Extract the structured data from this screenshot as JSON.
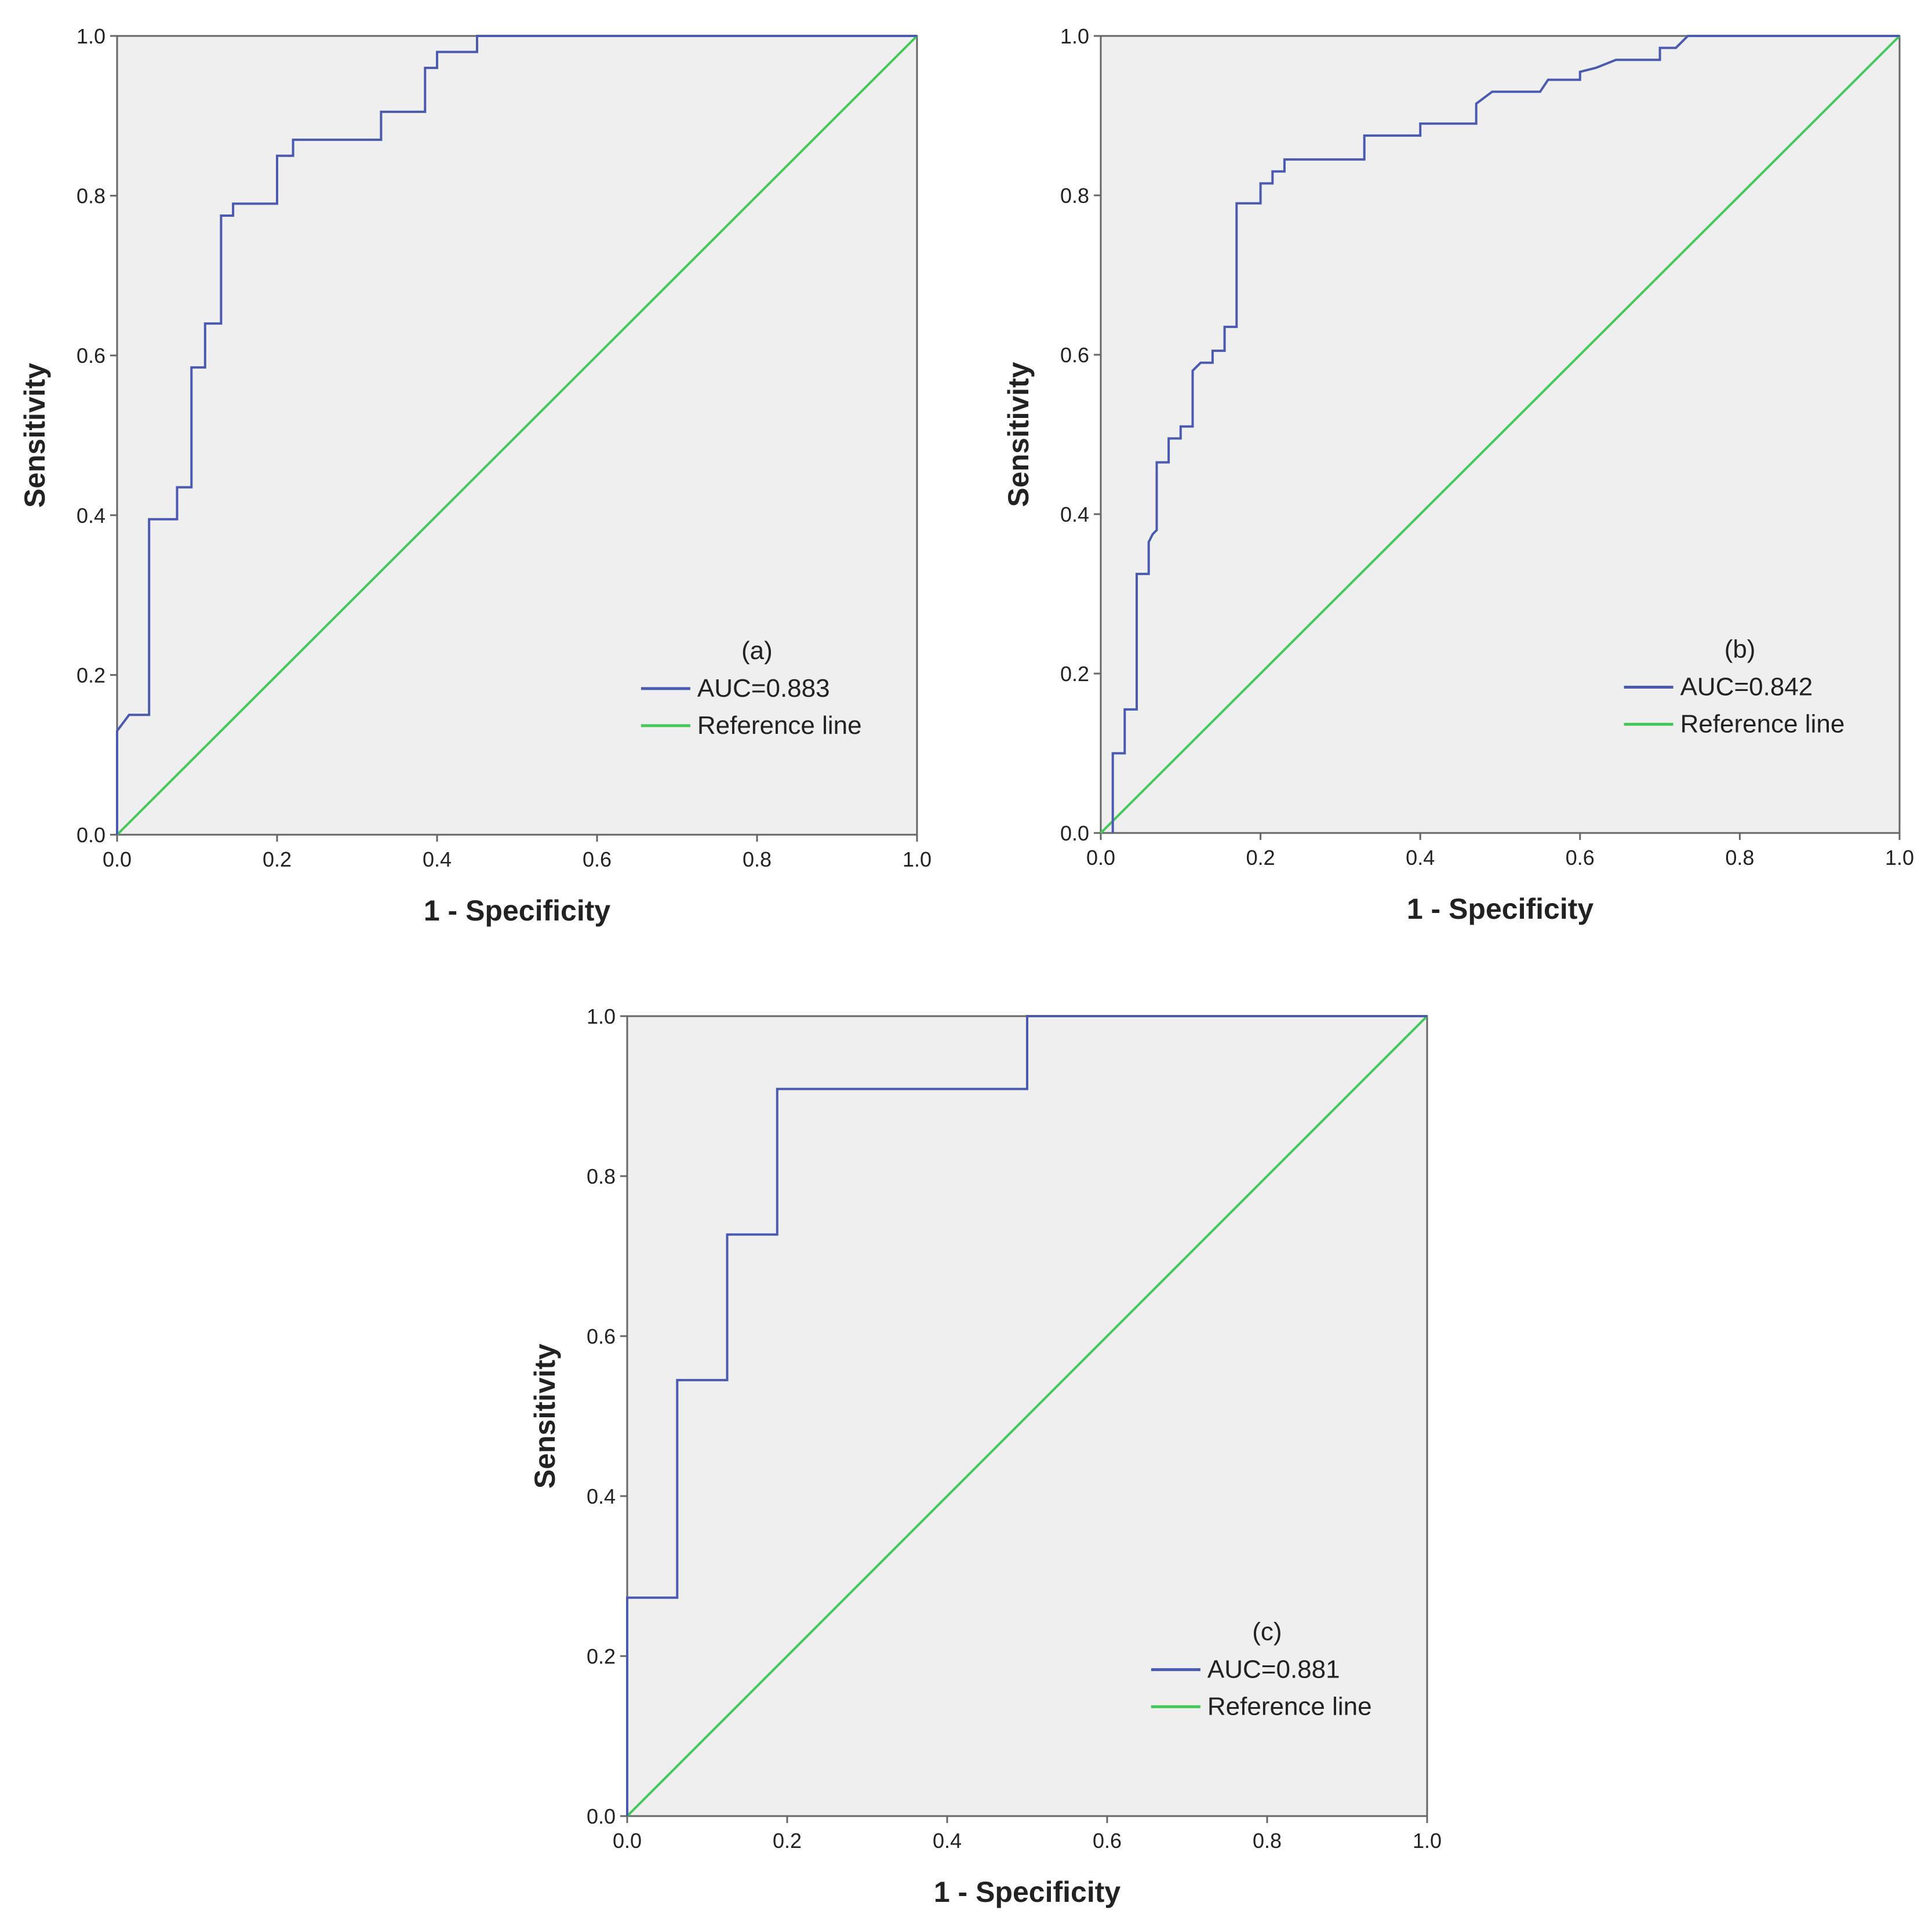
{
  "colors": {
    "plot_background": "#efefef",
    "frame": "#666666",
    "roc_line": "#4a5ab0",
    "reference_line": "#43c85a"
  },
  "chart_data": [
    {
      "type": "line",
      "panel_label": "(a)",
      "xlabel": "1 - Specificity",
      "ylabel": "Sensitivity",
      "xlim": [
        0,
        1
      ],
      "ylim": [
        0,
        1
      ],
      "ticks": [
        "0.0",
        "0.2",
        "0.4",
        "0.6",
        "0.8",
        "1.0"
      ],
      "legend_placement": "bottom-right",
      "series": [
        {
          "name": "AUC=0.883",
          "color_key": "roc_line",
          "x": [
            0,
            0,
            0.015,
            0.04,
            0.04,
            0.075,
            0.075,
            0.093,
            0.093,
            0.11,
            0.11,
            0.13,
            0.13,
            0.145,
            0.145,
            0.2,
            0.2,
            0.22,
            0.22,
            0.33,
            0.33,
            0.385,
            0.385,
            0.4,
            0.4,
            0.45,
            0.45,
            1.0
          ],
          "y": [
            0,
            0.13,
            0.15,
            0.15,
            0.395,
            0.395,
            0.435,
            0.435,
            0.585,
            0.585,
            0.64,
            0.64,
            0.775,
            0.775,
            0.79,
            0.79,
            0.85,
            0.85,
            0.87,
            0.87,
            0.905,
            0.905,
            0.96,
            0.96,
            0.98,
            0.98,
            1.0,
            1.0
          ]
        },
        {
          "name": "Reference line",
          "color_key": "reference_line",
          "x": [
            0,
            1
          ],
          "y": [
            0,
            1
          ]
        }
      ]
    },
    {
      "type": "line",
      "panel_label": "(b)",
      "xlabel": "1 - Specificity",
      "ylabel": "Sensitivity",
      "xlim": [
        0,
        1
      ],
      "ylim": [
        0,
        1
      ],
      "ticks": [
        "0.0",
        "0.2",
        "0.4",
        "0.6",
        "0.8",
        "1.0"
      ],
      "legend_placement": "bottom-right",
      "series": [
        {
          "name": "AUC=0.842",
          "color_key": "roc_line",
          "x": [
            0.015,
            0.015,
            0.03,
            0.03,
            0.045,
            0.045,
            0.06,
            0.06,
            0.065,
            0.07,
            0.07,
            0.085,
            0.085,
            0.1,
            0.1,
            0.115,
            0.115,
            0.125,
            0.14,
            0.14,
            0.155,
            0.155,
            0.17,
            0.17,
            0.2,
            0.2,
            0.215,
            0.215,
            0.23,
            0.23,
            0.33,
            0.33,
            0.4,
            0.4,
            0.47,
            0.47,
            0.49,
            0.55,
            0.56,
            0.6,
            0.6,
            0.62,
            0.645,
            0.7,
            0.7,
            0.72,
            0.735,
            1.0
          ],
          "y": [
            0,
            0.1,
            0.1,
            0.155,
            0.155,
            0.325,
            0.325,
            0.365,
            0.375,
            0.38,
            0.465,
            0.465,
            0.495,
            0.495,
            0.51,
            0.51,
            0.58,
            0.59,
            0.59,
            0.605,
            0.605,
            0.635,
            0.635,
            0.79,
            0.79,
            0.815,
            0.815,
            0.83,
            0.83,
            0.845,
            0.845,
            0.875,
            0.875,
            0.89,
            0.89,
            0.915,
            0.93,
            0.93,
            0.945,
            0.945,
            0.955,
            0.96,
            0.97,
            0.97,
            0.985,
            0.985,
            1.0,
            1.0
          ]
        },
        {
          "name": "Reference line",
          "color_key": "reference_line",
          "x": [
            0,
            1
          ],
          "y": [
            0,
            1
          ]
        }
      ]
    },
    {
      "type": "line",
      "panel_label": "(c)",
      "xlabel": "1 - Specificity",
      "ylabel": "Sensitivity",
      "xlim": [
        0,
        1
      ],
      "ylim": [
        0,
        1
      ],
      "ticks": [
        "0.0",
        "0.2",
        "0.4",
        "0.6",
        "0.8",
        "1.0"
      ],
      "legend_placement": "bottom-right",
      "series": [
        {
          "name": "AUC=0.881",
          "color_key": "roc_line",
          "x": [
            0,
            0,
            0.0625,
            0.0625,
            0.125,
            0.125,
            0.1875,
            0.1875,
            0.5,
            0.5,
            1.0
          ],
          "y": [
            0,
            0.273,
            0.273,
            0.545,
            0.545,
            0.727,
            0.727,
            0.909,
            0.909,
            1.0,
            1.0
          ]
        },
        {
          "name": "Reference line",
          "color_key": "reference_line",
          "x": [
            0,
            1
          ],
          "y": [
            0,
            1
          ]
        }
      ]
    }
  ]
}
